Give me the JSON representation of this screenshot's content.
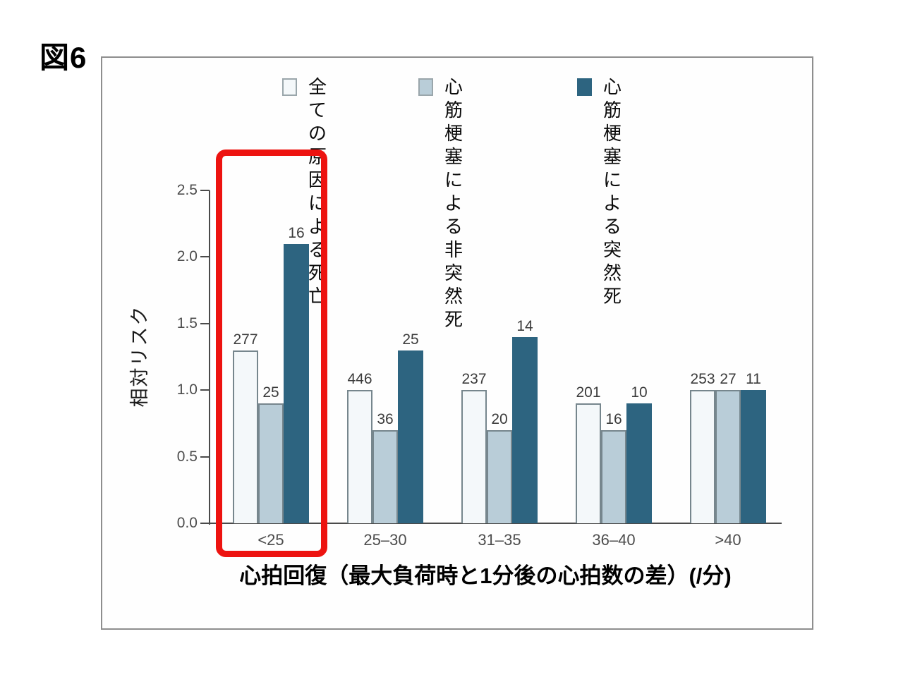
{
  "figure_label": "図6",
  "legend": [
    {
      "label": "全ての原\n因による死\n亡",
      "color": "#f4f8fa",
      "border": "#9aa6ab"
    },
    {
      "label": "心筋梗塞に\nよる非突然死",
      "color": "#b9cdd8",
      "border": "#9aa6ab"
    },
    {
      "label": "心筋梗塞に\nよる突然死",
      "color": "#2d6480",
      "border": "#2d6480"
    }
  ],
  "chart_data": {
    "type": "bar",
    "title": "",
    "xlabel": "心拍回復（最大負荷時と1分後の心拍数の差）(/分)",
    "ylabel": "相対リスク",
    "ylim": [
      0,
      2.5
    ],
    "yticks": [
      "0.0",
      "0.5",
      "1.0",
      "1.5",
      "2.0",
      "2.5"
    ],
    "categories": [
      "<25",
      "25–30",
      "31–35",
      "36–40",
      ">40"
    ],
    "series": [
      {
        "name": "全ての原因による死亡",
        "color": "#f4f8fa",
        "border": "#76868d",
        "values": [
          1.3,
          1.0,
          1.0,
          0.9,
          1.0
        ],
        "labels": [
          "277",
          "446",
          "237",
          "201",
          "253"
        ]
      },
      {
        "name": "心筋梗塞による非突然死",
        "color": "#b9cdd8",
        "border": "#76868d",
        "values": [
          0.9,
          0.7,
          0.7,
          0.7,
          1.0
        ],
        "labels": [
          "25",
          "36",
          "20",
          "16",
          "27"
        ]
      },
      {
        "name": "心筋梗塞による突然死",
        "color": "#2d6480",
        "border": "#2d6480",
        "values": [
          2.1,
          1.3,
          1.4,
          0.9,
          1.0
        ],
        "labels": [
          "16",
          "25",
          "14",
          "10",
          "11"
        ]
      }
    ],
    "legend_position": "top",
    "grid": false
  },
  "annotations": {
    "highlighted_category": "<25",
    "highlight_box_color": "#ed1310"
  }
}
